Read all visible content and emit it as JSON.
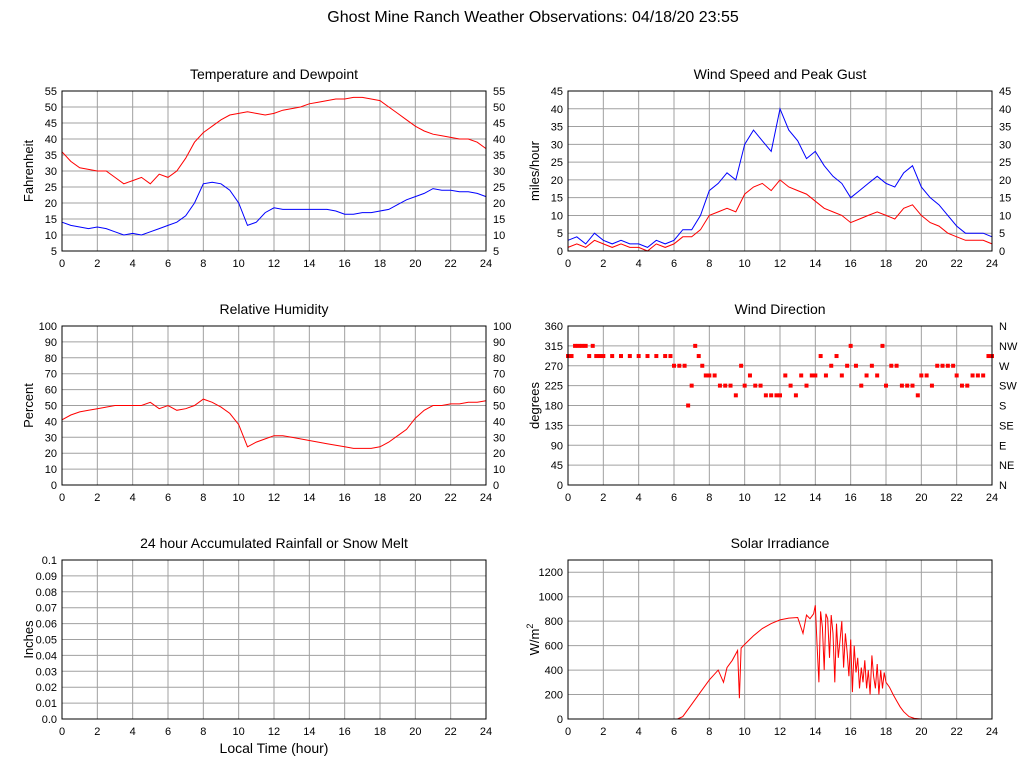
{
  "page": {
    "title": "Ghost Mine Ranch Weather Observations: 04/18/20 23:55"
  },
  "colors": {
    "red": "#ff0000",
    "blue": "#0000ff",
    "grid": "#a0a0a0",
    "frame": "#000000"
  },
  "chart_data": [
    {
      "id": "temp",
      "type": "line",
      "title": "Temperature and Dewpoint",
      "ylabel": "Fahrenheit",
      "xlabel": "",
      "xlim": [
        0,
        24
      ],
      "xticks": [
        0,
        2,
        4,
        6,
        8,
        10,
        12,
        14,
        16,
        18,
        20,
        22,
        24
      ],
      "ylim": [
        5,
        55
      ],
      "yticks": [
        5,
        10,
        15,
        20,
        25,
        30,
        35,
        40,
        45,
        50,
        55
      ],
      "right_ticks": [
        "5",
        "10",
        "15",
        "20",
        "25",
        "30",
        "35",
        "40",
        "45",
        "50",
        "55"
      ],
      "grid": true,
      "series": [
        {
          "color": "#ff0000",
          "x": [
            0,
            0.5,
            1,
            1.5,
            2,
            2.5,
            3,
            3.5,
            4,
            4.5,
            5,
            5.5,
            6,
            6.5,
            7,
            7.5,
            8,
            8.5,
            9,
            9.5,
            10,
            10.5,
            11,
            11.5,
            12,
            12.5,
            13,
            13.5,
            14,
            14.5,
            15,
            15.5,
            16,
            16.5,
            17,
            17.5,
            18,
            18.5,
            19,
            19.5,
            20,
            20.5,
            21,
            21.5,
            22,
            22.5,
            23,
            23.5,
            24
          ],
          "y": [
            36,
            33,
            31,
            30.5,
            30,
            30,
            28,
            26,
            27,
            28,
            26,
            29,
            28,
            30,
            34,
            39,
            42,
            44,
            46,
            47.5,
            48,
            48.5,
            48,
            47.5,
            48,
            49,
            49.5,
            50,
            51,
            51.5,
            52,
            52.5,
            52.5,
            53,
            53,
            52.5,
            52,
            50,
            48,
            46,
            44,
            42.5,
            41.5,
            41,
            40.5,
            40,
            40,
            39,
            37
          ]
        },
        {
          "color": "#0000ff",
          "x": [
            0,
            0.5,
            1,
            1.5,
            2,
            2.5,
            3,
            3.5,
            4,
            4.5,
            5,
            5.5,
            6,
            6.5,
            7,
            7.5,
            8,
            8.5,
            9,
            9.5,
            10,
            10.5,
            11,
            11.5,
            12,
            12.5,
            13,
            13.5,
            14,
            14.5,
            15,
            15.5,
            16,
            16.5,
            17,
            17.5,
            18,
            18.5,
            19,
            19.5,
            20,
            20.5,
            21,
            21.5,
            22,
            22.5,
            23,
            23.5,
            24
          ],
          "y": [
            14,
            13,
            12.5,
            12,
            12.5,
            12,
            11,
            10,
            10.5,
            10,
            11,
            12,
            13,
            14,
            16,
            20,
            26,
            26.5,
            26,
            24,
            20,
            13,
            14,
            17,
            18.5,
            18,
            18,
            18,
            18,
            18,
            18,
            17.5,
            16.5,
            16.5,
            17,
            17,
            17.5,
            18,
            19.5,
            21,
            22,
            23,
            24.5,
            24,
            24,
            23.5,
            23.5,
            23,
            22
          ]
        }
      ]
    },
    {
      "id": "wind",
      "type": "line",
      "title": "Wind Speed and Peak Gust",
      "ylabel": "miles/hour",
      "xlabel": "",
      "xlim": [
        0,
        24
      ],
      "xticks": [
        0,
        2,
        4,
        6,
        8,
        10,
        12,
        14,
        16,
        18,
        20,
        22,
        24
      ],
      "ylim": [
        0,
        45
      ],
      "yticks": [
        0,
        5,
        10,
        15,
        20,
        25,
        30,
        35,
        40,
        45
      ],
      "right_ticks": [
        "0",
        "5",
        "10",
        "15",
        "20",
        "25",
        "30",
        "35",
        "40",
        "45"
      ],
      "grid": true,
      "series": [
        {
          "color": "#ff0000",
          "x": [
            0,
            0.5,
            1,
            1.5,
            2,
            2.5,
            3,
            3.5,
            4,
            4.5,
            5,
            5.5,
            6,
            6.5,
            7,
            7.5,
            8,
            8.5,
            9,
            9.5,
            10,
            10.5,
            11,
            11.5,
            12,
            12.5,
            13,
            13.5,
            14,
            14.5,
            15,
            15.5,
            16,
            16.5,
            17,
            17.5,
            18,
            18.5,
            19,
            19.5,
            20,
            20.5,
            21,
            21.5,
            22,
            22.5,
            23,
            23.5,
            24
          ],
          "y": [
            1,
            2,
            1,
            3,
            2,
            1,
            2,
            1,
            1,
            0,
            2,
            1,
            2,
            4,
            4,
            6,
            10,
            11,
            12,
            11,
            16,
            18,
            19,
            17,
            20,
            18,
            17,
            16,
            14,
            12,
            11,
            10,
            8,
            9,
            10,
            11,
            10,
            9,
            12,
            13,
            10,
            8,
            7,
            5,
            4,
            3,
            3,
            3,
            2
          ]
        },
        {
          "color": "#0000ff",
          "x": [
            0,
            0.5,
            1,
            1.5,
            2,
            2.5,
            3,
            3.5,
            4,
            4.5,
            5,
            5.5,
            6,
            6.5,
            7,
            7.5,
            8,
            8.5,
            9,
            9.5,
            10,
            10.5,
            11,
            11.5,
            12,
            12.5,
            13,
            13.5,
            14,
            14.5,
            15,
            15.5,
            16,
            16.5,
            17,
            17.5,
            18,
            18.5,
            19,
            19.5,
            20,
            20.5,
            21,
            21.5,
            22,
            22.5,
            23,
            23.5,
            24
          ],
          "y": [
            3,
            4,
            2,
            5,
            3,
            2,
            3,
            2,
            2,
            1,
            3,
            2,
            3,
            6,
            6,
            10,
            17,
            19,
            22,
            20,
            30,
            34,
            31,
            28,
            40,
            34,
            31,
            26,
            28,
            24,
            21,
            19,
            15,
            17,
            19,
            21,
            19,
            18,
            22,
            24,
            18,
            15,
            13,
            10,
            7,
            5,
            5,
            5,
            4
          ]
        }
      ]
    },
    {
      "id": "rh",
      "type": "line",
      "title": "Relative Humidity",
      "ylabel": "Percent",
      "xlabel": "",
      "xlim": [
        0,
        24
      ],
      "xticks": [
        0,
        2,
        4,
        6,
        8,
        10,
        12,
        14,
        16,
        18,
        20,
        22,
        24
      ],
      "ylim": [
        0,
        100
      ],
      "yticks": [
        0,
        10,
        20,
        30,
        40,
        50,
        60,
        70,
        80,
        90,
        100
      ],
      "right_ticks": [
        "0",
        "10",
        "20",
        "30",
        "40",
        "50",
        "60",
        "70",
        "80",
        "90",
        "100"
      ],
      "grid": true,
      "series": [
        {
          "color": "#ff0000",
          "x": [
            0,
            0.5,
            1,
            1.5,
            2,
            2.5,
            3,
            3.5,
            4,
            4.5,
            5,
            5.5,
            6,
            6.5,
            7,
            7.5,
            8,
            8.5,
            9,
            9.5,
            10,
            10.5,
            11,
            11.5,
            12,
            12.5,
            13,
            13.5,
            14,
            14.5,
            15,
            15.5,
            16,
            16.5,
            17,
            17.5,
            18,
            18.5,
            19,
            19.5,
            20,
            20.5,
            21,
            21.5,
            22,
            22.5,
            23,
            23.5,
            24
          ],
          "y": [
            41,
            44,
            46,
            47,
            48,
            49,
            50,
            50,
            50,
            50,
            52,
            48,
            50,
            47,
            48,
            50,
            54,
            52,
            49,
            45,
            38,
            24,
            27,
            29,
            31,
            31,
            30,
            29,
            28,
            27,
            26,
            25,
            24,
            23,
            23,
            23,
            24,
            27,
            31,
            35,
            42,
            47,
            50,
            50,
            51,
            51,
            52,
            52,
            53
          ]
        }
      ]
    },
    {
      "id": "dir",
      "type": "scatter",
      "title": "Wind Direction",
      "ylabel": "degrees",
      "xlabel": "",
      "xlim": [
        0,
        24
      ],
      "xticks": [
        0,
        2,
        4,
        6,
        8,
        10,
        12,
        14,
        16,
        18,
        20,
        22,
        24
      ],
      "ylim": [
        0,
        360
      ],
      "yticks": [
        0,
        45,
        90,
        135,
        180,
        225,
        270,
        315,
        360
      ],
      "right_ticks": [
        "N",
        "NE",
        "E",
        "SE",
        "S",
        "SW",
        "W",
        "NW",
        "N"
      ],
      "grid": true,
      "series": [
        {
          "color": "#ff0000",
          "x": [
            0,
            0.2,
            0.4,
            0.6,
            0.8,
            1.0,
            1.2,
            1.4,
            1.6,
            1.8,
            2.0,
            2.5,
            3.0,
            3.5,
            4.0,
            4.5,
            5.0,
            5.5,
            5.8,
            6.0,
            6.3,
            6.6,
            6.8,
            7.0,
            7.2,
            7.4,
            7.6,
            7.8,
            8.0,
            8.3,
            8.6,
            8.9,
            9.2,
            9.5,
            9.8,
            10.0,
            10.3,
            10.6,
            10.9,
            11.2,
            11.5,
            11.8,
            12.0,
            12.3,
            12.6,
            12.9,
            13.2,
            13.5,
            13.8,
            14.0,
            14.3,
            14.6,
            14.9,
            15.2,
            15.5,
            15.8,
            16.0,
            16.3,
            16.6,
            16.9,
            17.2,
            17.5,
            17.8,
            18.0,
            18.3,
            18.6,
            18.9,
            19.2,
            19.5,
            19.8,
            20.0,
            20.3,
            20.6,
            20.9,
            21.2,
            21.5,
            21.8,
            22.0,
            22.3,
            22.6,
            22.9,
            23.2,
            23.5,
            23.8,
            24.0
          ],
          "y": [
            292,
            292,
            315,
            315,
            315,
            315,
            292,
            315,
            292,
            292,
            292,
            292,
            292,
            292,
            292,
            292,
            292,
            292,
            292,
            270,
            270,
            270,
            180,
            225,
            315,
            292,
            270,
            248,
            248,
            248,
            225,
            225,
            225,
            203,
            270,
            225,
            248,
            225,
            225,
            203,
            203,
            203,
            203,
            248,
            225,
            203,
            248,
            225,
            248,
            248,
            292,
            248,
            270,
            292,
            248,
            270,
            315,
            270,
            225,
            248,
            270,
            248,
            315,
            225,
            270,
            270,
            225,
            225,
            225,
            203,
            248,
            248,
            225,
            270,
            270,
            270,
            270,
            248,
            225,
            225,
            248,
            248,
            248,
            292,
            292
          ]
        }
      ]
    },
    {
      "id": "rain",
      "type": "line",
      "title": "24 hour Accumulated Rainfall or Snow Melt",
      "ylabel": "Inches",
      "xlabel": "Local Time (hour)",
      "xlim": [
        0,
        24
      ],
      "xticks": [
        0,
        2,
        4,
        6,
        8,
        10,
        12,
        14,
        16,
        18,
        20,
        22,
        24
      ],
      "ylim": [
        0,
        0.1
      ],
      "yticks": [
        0,
        0.01,
        0.02,
        0.03,
        0.04,
        0.05,
        0.06,
        0.07,
        0.08,
        0.09,
        0.1
      ],
      "ytick_labels": [
        "0.0",
        "0.01",
        "0.02",
        "0.03",
        "0.04",
        "0.05",
        "0.06",
        "0.07",
        "0.08",
        "0.09",
        "0.1"
      ],
      "right_ticks": [],
      "grid": true,
      "series": [
        {
          "color": "#ff0000",
          "x": [
            0,
            24
          ],
          "y": [
            0,
            0
          ]
        }
      ]
    },
    {
      "id": "solar",
      "type": "line",
      "title": "Solar Irradiance",
      "ylabel": "W/m",
      "ylabel_sup": "2",
      "xlabel": "",
      "xlim": [
        0,
        24
      ],
      "xticks": [
        0,
        2,
        4,
        6,
        8,
        10,
        12,
        14,
        16,
        18,
        20,
        22,
        24
      ],
      "ylim": [
        0,
        1300
      ],
      "yticks": [
        0,
        200,
        400,
        600,
        800,
        1000,
        1200
      ],
      "right_ticks": [],
      "grid": true,
      "series": [
        {
          "color": "#ff0000",
          "x": [
            0,
            6.2,
            6.5,
            7.0,
            7.5,
            8.0,
            8.5,
            8.8,
            9.0,
            9.3,
            9.6,
            9.7,
            9.8,
            10.0,
            10.5,
            11.0,
            11.5,
            12.0,
            12.5,
            13.0,
            13.3,
            13.5,
            13.7,
            13.9,
            14.0,
            14.1,
            14.2,
            14.3,
            14.4,
            14.5,
            14.6,
            14.7,
            14.8,
            14.9,
            15.0,
            15.1,
            15.2,
            15.3,
            15.4,
            15.5,
            15.6,
            15.7,
            15.8,
            15.9,
            16.0,
            16.1,
            16.2,
            16.3,
            16.4,
            16.5,
            16.6,
            16.7,
            16.8,
            16.9,
            17.0,
            17.1,
            17.2,
            17.3,
            17.4,
            17.5,
            17.6,
            17.7,
            17.8,
            17.9,
            18.0,
            18.2,
            18.4,
            18.6,
            18.8,
            19.0,
            19.3,
            19.6,
            20.0,
            24
          ],
          "y": [
            0,
            0,
            20,
            120,
            220,
            320,
            400,
            300,
            420,
            480,
            560,
            170,
            580,
            610,
            680,
            740,
            780,
            810,
            825,
            830,
            700,
            850,
            820,
            860,
            930,
            600,
            300,
            880,
            750,
            400,
            860,
            820,
            500,
            850,
            700,
            300,
            780,
            500,
            650,
            800,
            420,
            700,
            550,
            350,
            650,
            220,
            600,
            380,
            500,
            250,
            420,
            300,
            480,
            250,
            400,
            200,
            520,
            350,
            250,
            450,
            200,
            400,
            250,
            380,
            300,
            260,
            200,
            150,
            100,
            60,
            20,
            5,
            0,
            0
          ]
        }
      ]
    }
  ]
}
